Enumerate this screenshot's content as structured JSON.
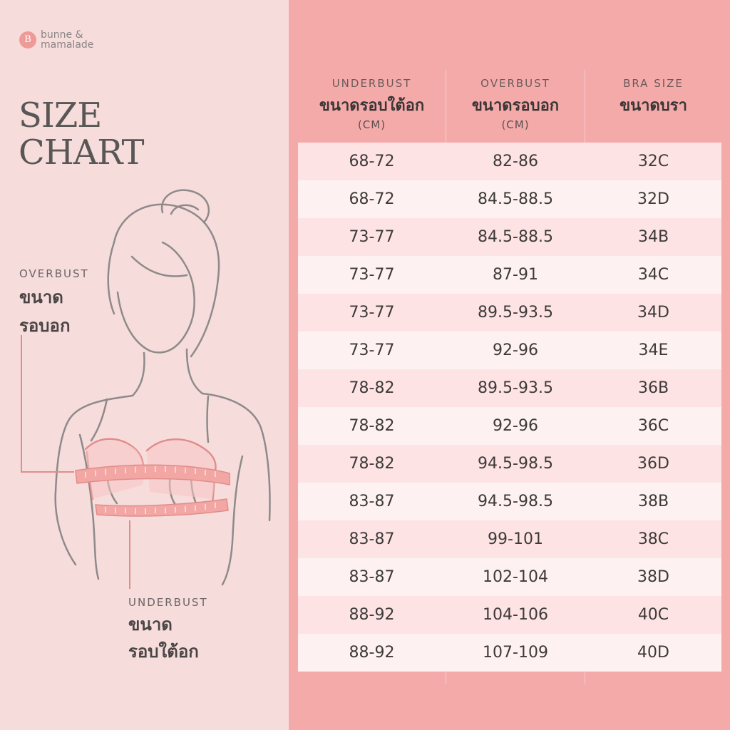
{
  "brand": {
    "mark": "B",
    "name": "bunne & mamalade"
  },
  "title": {
    "line1": "SIZE",
    "line2": "CHART"
  },
  "overbust_label": {
    "en": "OVERBUST",
    "th_line1": "ขนาด",
    "th_line2": "รอบอก"
  },
  "underbust_label": {
    "en": "UNDERBUST",
    "th_line1": "ขนาด",
    "th_line2": "รอบใต้อก"
  },
  "columns": [
    {
      "en": "UNDERBUST",
      "th": "ขนาดรอบใต้อก",
      "unit": "(CM)"
    },
    {
      "en": "OVERBUST",
      "th": "ขนาดรอบอก",
      "unit": "(CM)"
    },
    {
      "en": "BRA SIZE",
      "th": "ขนาดบรา",
      "unit": ""
    }
  ],
  "rows": [
    {
      "underbust": "68-72",
      "overbust": "82-86",
      "size": "32C"
    },
    {
      "underbust": "68-72",
      "overbust": "84.5-88.5",
      "size": "32D"
    },
    {
      "underbust": "73-77",
      "overbust": "84.5-88.5",
      "size": "34B"
    },
    {
      "underbust": "73-77",
      "overbust": "87-91",
      "size": "34C"
    },
    {
      "underbust": "73-77",
      "overbust": "89.5-93.5",
      "size": "34D"
    },
    {
      "underbust": "73-77",
      "overbust": "92-96",
      "size": "34E"
    },
    {
      "underbust": "78-82",
      "overbust": "89.5-93.5",
      "size": "36B"
    },
    {
      "underbust": "78-82",
      "overbust": "92-96",
      "size": "36C"
    },
    {
      "underbust": "78-82",
      "overbust": "94.5-98.5",
      "size": "36D"
    },
    {
      "underbust": "83-87",
      "overbust": "94.5-98.5",
      "size": "38B"
    },
    {
      "underbust": "83-87",
      "overbust": "99-101",
      "size": "38C"
    },
    {
      "underbust": "83-87",
      "overbust": "102-104",
      "size": "38D"
    },
    {
      "underbust": "88-92",
      "overbust": "104-106",
      "size": "40C"
    },
    {
      "underbust": "88-92",
      "overbust": "107-109",
      "size": "40D"
    }
  ],
  "colors": {
    "left_bg": "#f6dcdb",
    "right_bg": "#f5aaaa",
    "row_a": "#fde3e3",
    "row_b": "#fdf2f1",
    "accent": "#ee9a97",
    "tape": "#f3a7a4"
  }
}
